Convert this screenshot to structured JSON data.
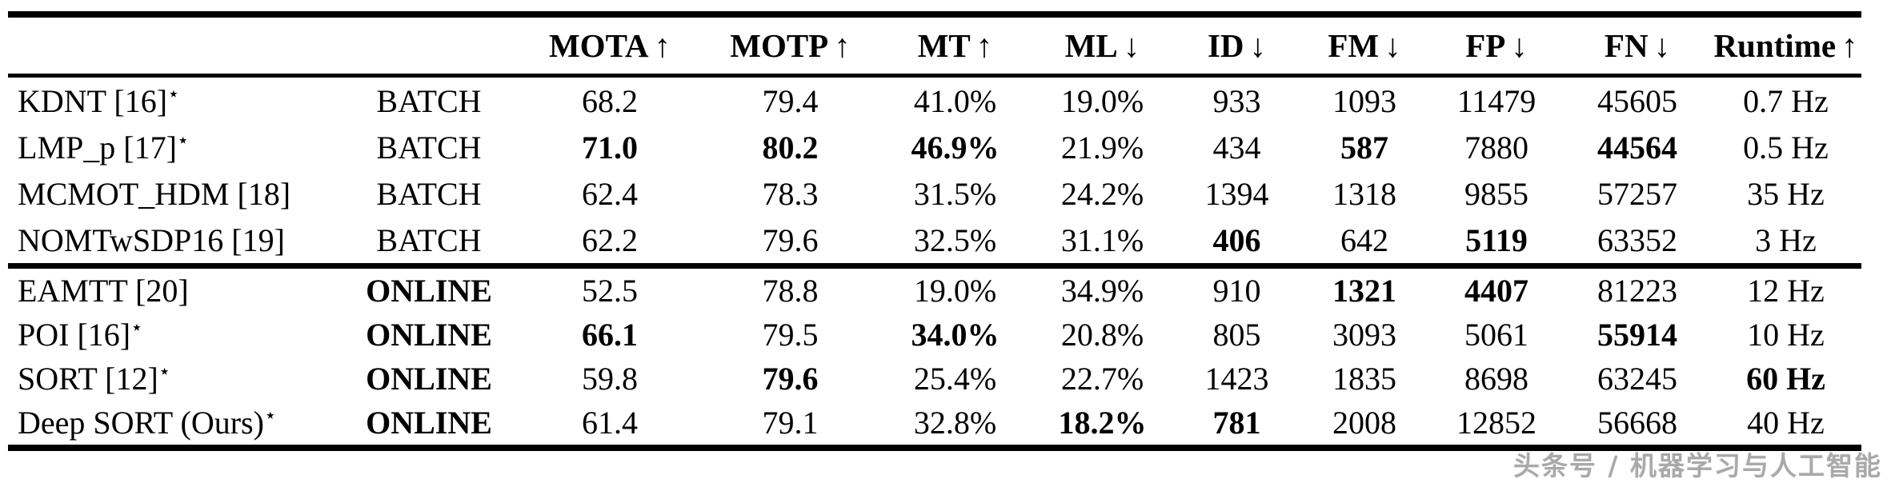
{
  "colors": {
    "text": "#000000",
    "rule": "#000000",
    "background": "#ffffff",
    "watermark_gray": "#a9a9a9"
  },
  "watermark": "头条号 / 机器学习与人工智能",
  "table": {
    "header": {
      "blank_columns": 2,
      "metrics": [
        {
          "label": "MOTA",
          "arrow": "↑"
        },
        {
          "label": "MOTP",
          "arrow": "↑"
        },
        {
          "label": "MT",
          "arrow": "↑"
        },
        {
          "label": "ML",
          "arrow": "↓"
        },
        {
          "label": "ID",
          "arrow": "↓"
        },
        {
          "label": "FM",
          "arrow": "↓"
        },
        {
          "label": "FP",
          "arrow": "↓"
        },
        {
          "label": "FN",
          "arrow": "↓"
        },
        {
          "label": "Runtime",
          "arrow": "↑"
        }
      ]
    },
    "sections": [
      {
        "name": "batch",
        "mode_bold": false,
        "rows": [
          {
            "tracker": "KDNT [16]",
            "star": "⋆",
            "mode": "BATCH",
            "values": [
              "68.2",
              "79.4",
              "41.0%",
              "19.0%",
              "933",
              "1093",
              "11479",
              "45605",
              "0.7 Hz"
            ],
            "bold": []
          },
          {
            "tracker": "LMP_p [17]",
            "star": "⋆",
            "mode": "BATCH",
            "values": [
              "71.0",
              "80.2",
              "46.9%",
              "21.9%",
              "434",
              "587",
              "7880",
              "44564",
              "0.5 Hz"
            ],
            "bold": [
              0,
              1,
              2,
              5,
              7
            ]
          },
          {
            "tracker": "MCMOT_HDM [18]",
            "star": "",
            "mode": "BATCH",
            "values": [
              "62.4",
              "78.3",
              "31.5%",
              "24.2%",
              "1394",
              "1318",
              "9855",
              "57257",
              "35 Hz"
            ],
            "bold": []
          },
          {
            "tracker": "NOMTwSDP16 [19]",
            "star": "",
            "mode": "BATCH",
            "values": [
              "62.2",
              "79.6",
              "32.5%",
              "31.1%",
              "406",
              "642",
              "5119",
              "63352",
              "3 Hz"
            ],
            "bold": [
              4,
              6
            ]
          }
        ]
      },
      {
        "name": "online",
        "mode_bold": true,
        "rows": [
          {
            "tracker": "EAMTT [20]",
            "star": "",
            "mode": "ONLINE",
            "values": [
              "52.5",
              "78.8",
              "19.0%",
              "34.9%",
              "910",
              "1321",
              "4407",
              "81223",
              "12 Hz"
            ],
            "bold": [
              5,
              6
            ]
          },
          {
            "tracker": "POI [16]",
            "star": "⋆",
            "mode": "ONLINE",
            "values": [
              "66.1",
              "79.5",
              "34.0%",
              "20.8%",
              "805",
              "3093",
              "5061",
              "55914",
              "10 Hz"
            ],
            "bold": [
              0,
              2,
              7
            ]
          },
          {
            "tracker": "SORT [12]",
            "star": "⋆",
            "mode": "ONLINE",
            "values": [
              "59.8",
              "79.6",
              "25.4%",
              "22.7%",
              "1423",
              "1835",
              "8698",
              "63245",
              "60 Hz"
            ],
            "bold": [
              1,
              8
            ]
          },
          {
            "tracker": "Deep SORT (Ours)",
            "star": "⋆",
            "mode": "ONLINE",
            "values": [
              "61.4",
              "79.1",
              "32.8%",
              "18.2%",
              "781",
              "2008",
              "12852",
              "56668",
              "40 Hz"
            ],
            "bold": [
              3,
              4
            ]
          }
        ]
      }
    ]
  }
}
